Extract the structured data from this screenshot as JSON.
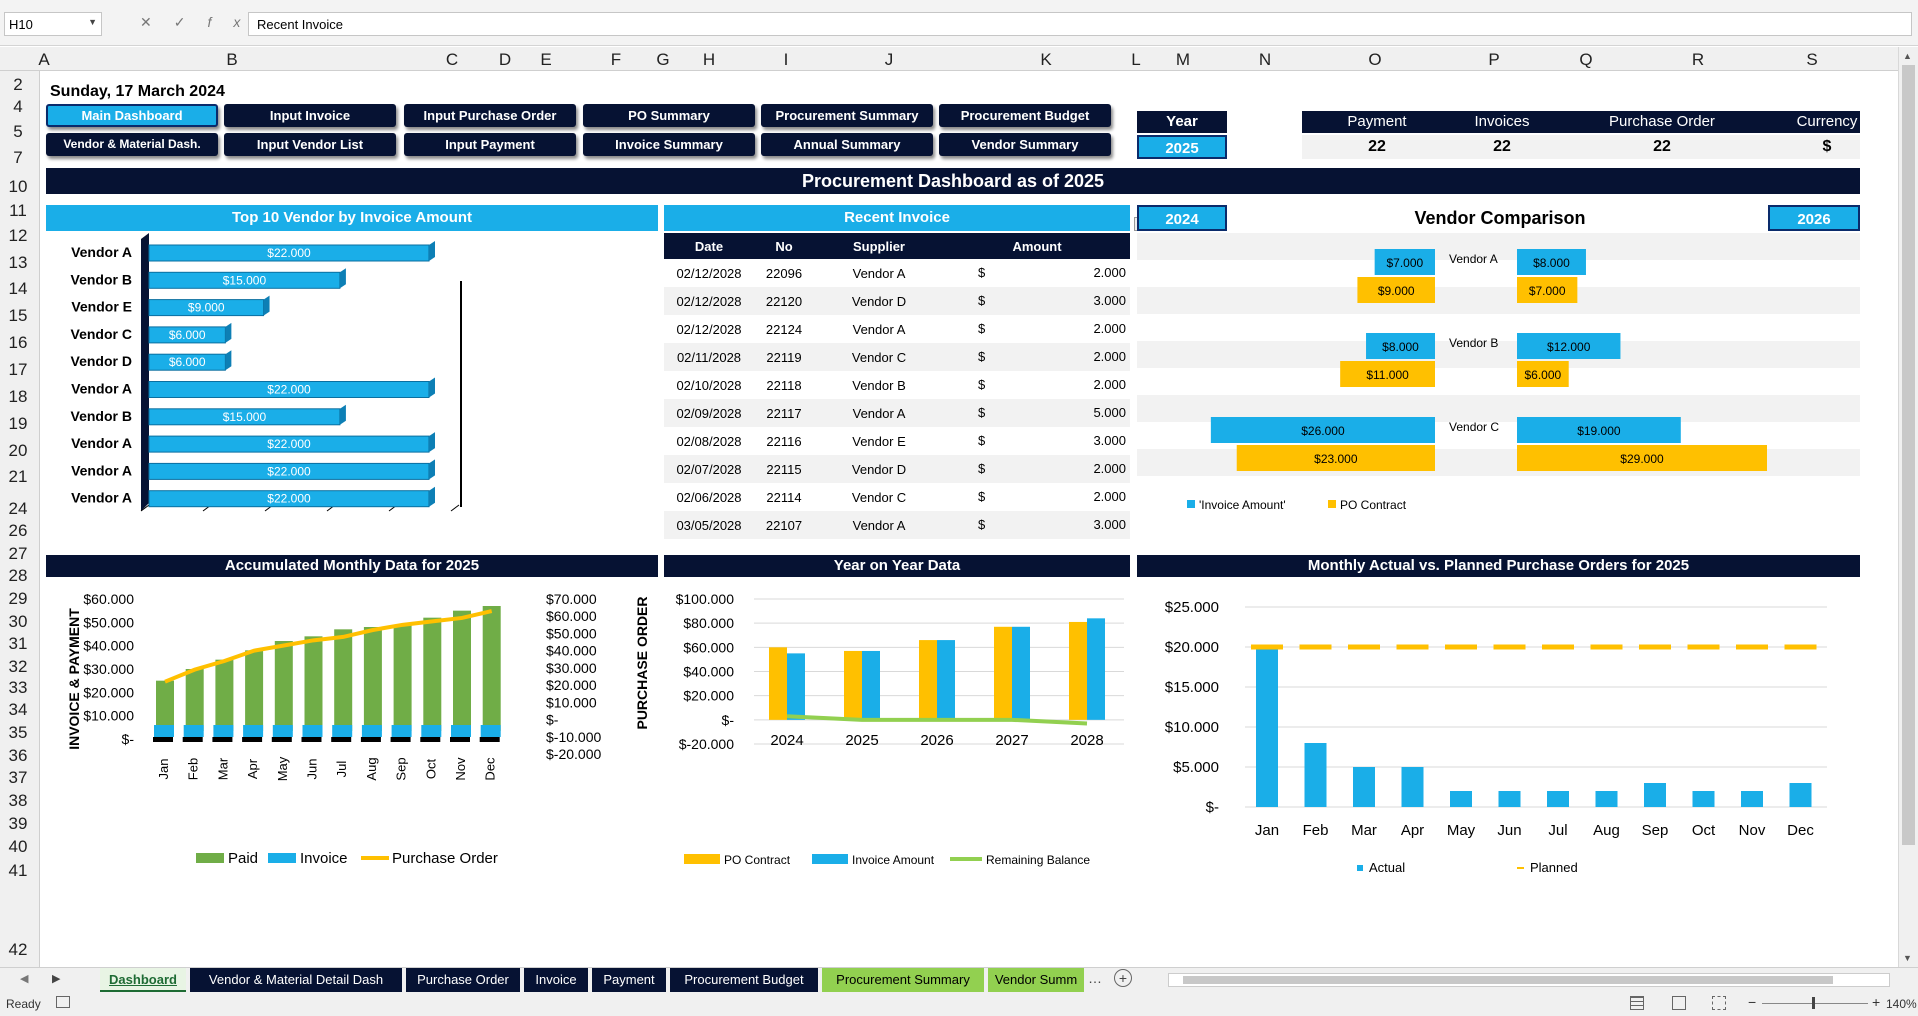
{
  "formula_bar": {
    "cell": "H10",
    "content": "Recent Invoice",
    "fx": "fx"
  },
  "col_headers": [
    "A",
    "B",
    "C",
    "D",
    "E",
    "F",
    "G",
    "H",
    "I",
    "J",
    "K",
    "L",
    "M",
    "N",
    "O",
    "P",
    "Q",
    "R",
    "S"
  ],
  "row_headers": [
    "2",
    "4",
    "5",
    "7",
    "10",
    "11",
    "12",
    "13",
    "14",
    "15",
    "16",
    "17",
    "18",
    "19",
    "20",
    "21",
    "24",
    "26",
    "27",
    "28",
    "29",
    "30",
    "31",
    "32",
    "33",
    "34",
    "35",
    "36",
    "37",
    "38",
    "39",
    "40",
    "41",
    "42"
  ],
  "date_line": "Sunday, 17 March 2024",
  "nav": {
    "row1": [
      "Main Dashboard",
      "Input Invoice",
      "Input Purchase Order",
      "PO Summary",
      "Procurement Summary",
      "Procurement Budget"
    ],
    "row2": [
      "Vendor & Material Dash.",
      "Input  Vendor List",
      "Input Payment",
      "Invoice Summary",
      "Annual Summary",
      "Vendor Summary"
    ]
  },
  "year_box": {
    "label": "Year",
    "value": "2025"
  },
  "stats": {
    "headers": [
      "Payment",
      "Invoices",
      "Purchase Order",
      "Currency"
    ],
    "values": [
      "22",
      "22",
      "22",
      "$"
    ]
  },
  "title": "Procurement Dashboard as of 2025",
  "top10": {
    "title": "Top 10 Vendor by Invoice Amount",
    "chart_data": {
      "type": "bar",
      "categories": [
        "Vendor A",
        "Vendor B",
        "Vendor E",
        "Vendor C",
        "Vendor D",
        "Vendor A",
        "Vendor B",
        "Vendor A",
        "Vendor A",
        "Vendor A"
      ],
      "values": [
        22000,
        15000,
        9000,
        6000,
        6000,
        22000,
        15000,
        22000,
        22000,
        22000
      ],
      "labels": [
        "$22.000",
        "$15.000",
        "$9.000",
        "$6.000",
        "$6.000",
        "$22.000",
        "$15.000",
        "$22.000",
        "$22.000",
        "$22.000"
      ],
      "xlim": [
        0,
        25000
      ]
    }
  },
  "recent": {
    "title": "Recent Invoice",
    "headers": [
      "Date",
      "No",
      "Supplier",
      "Amount"
    ],
    "rows": [
      [
        "02/12/2028",
        "22096",
        "Vendor A",
        "$",
        "2.000"
      ],
      [
        "02/12/2028",
        "22120",
        "Vendor D",
        "$",
        "3.000"
      ],
      [
        "02/12/2028",
        "22124",
        "Vendor A",
        "$",
        "2.000"
      ],
      [
        "02/11/2028",
        "22119",
        "Vendor C",
        "$",
        "2.000"
      ],
      [
        "02/10/2028",
        "22118",
        "Vendor B",
        "$",
        "2.000"
      ],
      [
        "02/09/2028",
        "22117",
        "Vendor A",
        "$",
        "5.000"
      ],
      [
        "02/08/2028",
        "22116",
        "Vendor E",
        "$",
        "3.000"
      ],
      [
        "02/07/2028",
        "22115",
        "Vendor D",
        "$",
        "2.000"
      ],
      [
        "02/06/2028",
        "22114",
        "Vendor C",
        "$",
        "2.000"
      ],
      [
        "03/05/2028",
        "22107",
        "Vendor A",
        "$",
        "3.000"
      ]
    ]
  },
  "vendor_cmp": {
    "title": "Vendor Comparison",
    "year_left": "2024",
    "year_right": "2026",
    "chart_data": {
      "type": "bar",
      "categories": [
        "Vendor A",
        "Vendor B",
        "Vendor C"
      ],
      "series": [
        {
          "name": "'Invoice Amount'",
          "left": [
            7000,
            8000,
            26000
          ],
          "right": [
            8000,
            12000,
            19000
          ],
          "left_labels": [
            "$7.000",
            "$8.000",
            "$26.000"
          ],
          "right_labels": [
            "$8.000",
            "$12.000",
            "$19.000"
          ]
        },
        {
          "name": "PO Contract",
          "left": [
            9000,
            11000,
            23000
          ],
          "right": [
            7000,
            6000,
            29000
          ],
          "left_labels": [
            "$9.000",
            "$11.000",
            "$23.000"
          ],
          "right_labels": [
            "$7.000",
            "$6.000",
            "$29.000"
          ]
        }
      ]
    },
    "legend": [
      "'Invoice Amount'",
      "PO Contract"
    ]
  },
  "accum": {
    "title": "Accumulated Monthly Data for 2025",
    "ylabel_left": "INVOICE & PAYMENT",
    "ylabel_right": "PURCHASE ORDER",
    "left_ticks": [
      "$60.000",
      "$50.000",
      "$40.000",
      "$30.000",
      "$20.000",
      "$10.000",
      "$-"
    ],
    "right_ticks": [
      "$70.000",
      "$60.000",
      "$50.000",
      "$40.000",
      "$30.000",
      "$20.000",
      "$10.000",
      "$-",
      "$-10.000",
      "$-20.000"
    ],
    "chart_data": {
      "type": "bar",
      "categories": [
        "Jan",
        "Feb",
        "Mar",
        "Apr",
        "May",
        "Jun",
        "Jul",
        "Aug",
        "Sep",
        "Oct",
        "Nov",
        "Dec"
      ],
      "series": [
        {
          "name": "Paid",
          "values": [
            25000,
            30000,
            34000,
            38000,
            42000,
            44000,
            47000,
            48000,
            49000,
            52000,
            55000,
            57000
          ]
        },
        {
          "name": "Invoice",
          "values": [
            4000,
            4000,
            4000,
            4000,
            4000,
            4000,
            4000,
            4000,
            4000,
            4000,
            4000,
            4000
          ]
        },
        {
          "name": "Purchase Order",
          "values": [
            22000,
            29000,
            34000,
            40000,
            43000,
            46000,
            48000,
            52000,
            55000,
            57000,
            59000,
            63000
          ]
        }
      ],
      "ylim": [
        0,
        60000
      ],
      "ylim_right": [
        -20000,
        70000
      ]
    },
    "legend": [
      "Paid",
      "Invoice",
      "Purchase Order"
    ]
  },
  "yoy": {
    "title": "Year on Year Data",
    "ticks": [
      "$100.000",
      "$80.000",
      "$60.000",
      "$40.000",
      "$20.000",
      "$-",
      "$-20.000"
    ],
    "chart_data": {
      "type": "bar",
      "categories": [
        "2024",
        "2025",
        "2026",
        "2027",
        "2028"
      ],
      "series": [
        {
          "name": "PO Contract",
          "values": [
            60000,
            57000,
            66000,
            77000,
            81000
          ]
        },
        {
          "name": "Invoice Amount",
          "values": [
            55000,
            57000,
            66000,
            77000,
            84000
          ]
        },
        {
          "name": "Remaining Balance",
          "values": [
            3000,
            0,
            0,
            0,
            -3000
          ]
        }
      ],
      "ylim": [
        -20000,
        100000
      ]
    },
    "legend": [
      "PO Contract",
      "Invoice Amount",
      "Remaining Balance"
    ]
  },
  "monthly": {
    "title": "Monthly Actual vs. Planned Purchase Orders for 2025",
    "ticks": [
      "$25.000",
      "$20.000",
      "$15.000",
      "$10.000",
      "$5.000",
      "$-"
    ],
    "chart_data": {
      "type": "bar",
      "categories": [
        "Jan",
        "Feb",
        "Mar",
        "Apr",
        "May",
        "Jun",
        "Jul",
        "Aug",
        "Sep",
        "Oct",
        "Nov",
        "Dec"
      ],
      "series": [
        {
          "name": "Actual",
          "values": [
            20000,
            8000,
            5000,
            5000,
            2000,
            2000,
            2000,
            2000,
            3000,
            2000,
            2000,
            3000
          ]
        },
        {
          "name": "Planned",
          "values": [
            20000,
            20000,
            20000,
            20000,
            20000,
            20000,
            20000,
            20000,
            20000,
            20000,
            20000,
            20000
          ]
        }
      ],
      "ylim": [
        0,
        25000
      ]
    },
    "legend": [
      "Actual",
      "Planned"
    ]
  },
  "tabs": [
    "Dashboard",
    "Vendor & Material Detail Dash",
    "Purchase Order",
    "Invoice",
    "Payment",
    "Procurement Budget",
    "Procurement Summary",
    "Vendor Summ"
  ],
  "status": {
    "ready": "Ready",
    "zoom": "140%"
  },
  "colors": {
    "navy": "#061233",
    "blue": "#1aaee8",
    "yellow": "#ffc000",
    "green": "#70ad47",
    "lgreen": "#92d050"
  }
}
